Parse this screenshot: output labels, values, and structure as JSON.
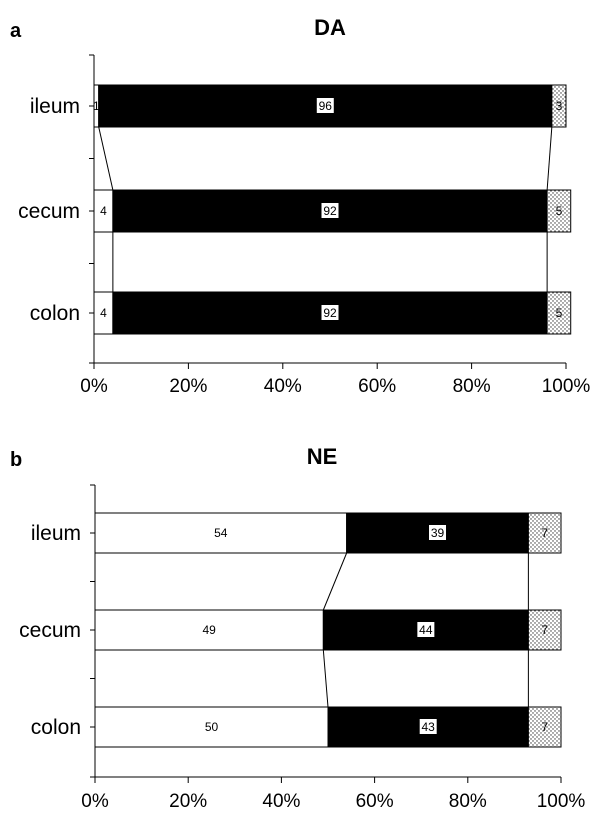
{
  "figure": {
    "panels": [
      {
        "letter": "a"
      },
      {
        "letter": "b"
      }
    ]
  },
  "chart_data": [
    {
      "type": "bar",
      "stacked": true,
      "orientation": "horizontal",
      "title": "DA",
      "categories": [
        "ileum",
        "cecum",
        "colon"
      ],
      "series": [
        {
          "values": [
            1,
            4,
            4
          ],
          "color": "#ffffff"
        },
        {
          "values": [
            96,
            92,
            92
          ],
          "color": "#000000"
        },
        {
          "values": [
            3,
            5,
            5
          ],
          "color": "#dddddd",
          "pattern": "dotted"
        }
      ],
      "xlim": [
        0,
        100
      ],
      "xticks": [
        "0%",
        "20%",
        "40%",
        "60%",
        "80%",
        "100%"
      ],
      "xlabel": "",
      "ylabel": "",
      "grid": false,
      "legend": "none"
    },
    {
      "type": "bar",
      "stacked": true,
      "orientation": "horizontal",
      "title": "NE",
      "categories": [
        "ileum",
        "cecum",
        "colon"
      ],
      "series": [
        {
          "values": [
            54,
            49,
            50
          ],
          "color": "#ffffff"
        },
        {
          "values": [
            39,
            44,
            43
          ],
          "color": "#000000"
        },
        {
          "values": [
            7,
            7,
            7
          ],
          "color": "#dddddd",
          "pattern": "dotted"
        }
      ],
      "xlim": [
        0,
        100
      ],
      "xticks": [
        "0%",
        "20%",
        "40%",
        "60%",
        "80%",
        "100%"
      ],
      "xlabel": "",
      "ylabel": "",
      "grid": false,
      "legend": "none"
    }
  ]
}
